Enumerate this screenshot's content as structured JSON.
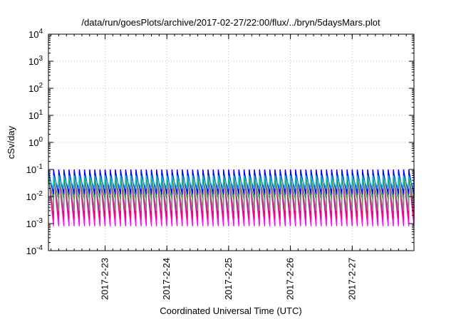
{
  "chart_data": {
    "type": "line",
    "title": "/data/run/goesPlots/archive/2017-02-27/22:00/flux/../bryn/5daysMars.plot",
    "xlabel": "Coordinated Universal Time (UTC)",
    "ylabel": "cSv/day",
    "y_scale": "log",
    "ylim_exp": [
      -4,
      4
    ],
    "y_ticks": [
      {
        "base": "10",
        "exp": "-4"
      },
      {
        "base": "10",
        "exp": "-3"
      },
      {
        "base": "10",
        "exp": "-2"
      },
      {
        "base": "10",
        "exp": "-1"
      },
      {
        "base": "10",
        "exp": "0"
      },
      {
        "base": "10",
        "exp": "1"
      },
      {
        "base": "10",
        "exp": "2"
      },
      {
        "base": "10",
        "exp": "3"
      },
      {
        "base": "10",
        "exp": "4"
      }
    ],
    "x_range_days": [
      "2017-02-22 02:00",
      "2017-02-28 00:00"
    ],
    "x_ticks": [
      "2017-2-23",
      "2017-2-24",
      "2017-2-25",
      "2017-2-26",
      "2017-2-27"
    ],
    "grid": true,
    "sawtooth_period_hours": 2,
    "series": [
      {
        "color": "#ff00ff",
        "peak": 0.1,
        "trough": 0.0008
      },
      {
        "color": "#e01060",
        "peak": 0.09,
        "trough": 0.0015
      },
      {
        "color": "#808080",
        "peak": 0.07,
        "trough": 0.003
      },
      {
        "color": "#40a040",
        "peak": 0.05,
        "trough": 0.008
      },
      {
        "color": "#0000ff",
        "peak": 0.1,
        "trough": 0.012
      },
      {
        "color": "#00c0c0",
        "peak": 0.06,
        "trough": 0.02
      }
    ]
  }
}
